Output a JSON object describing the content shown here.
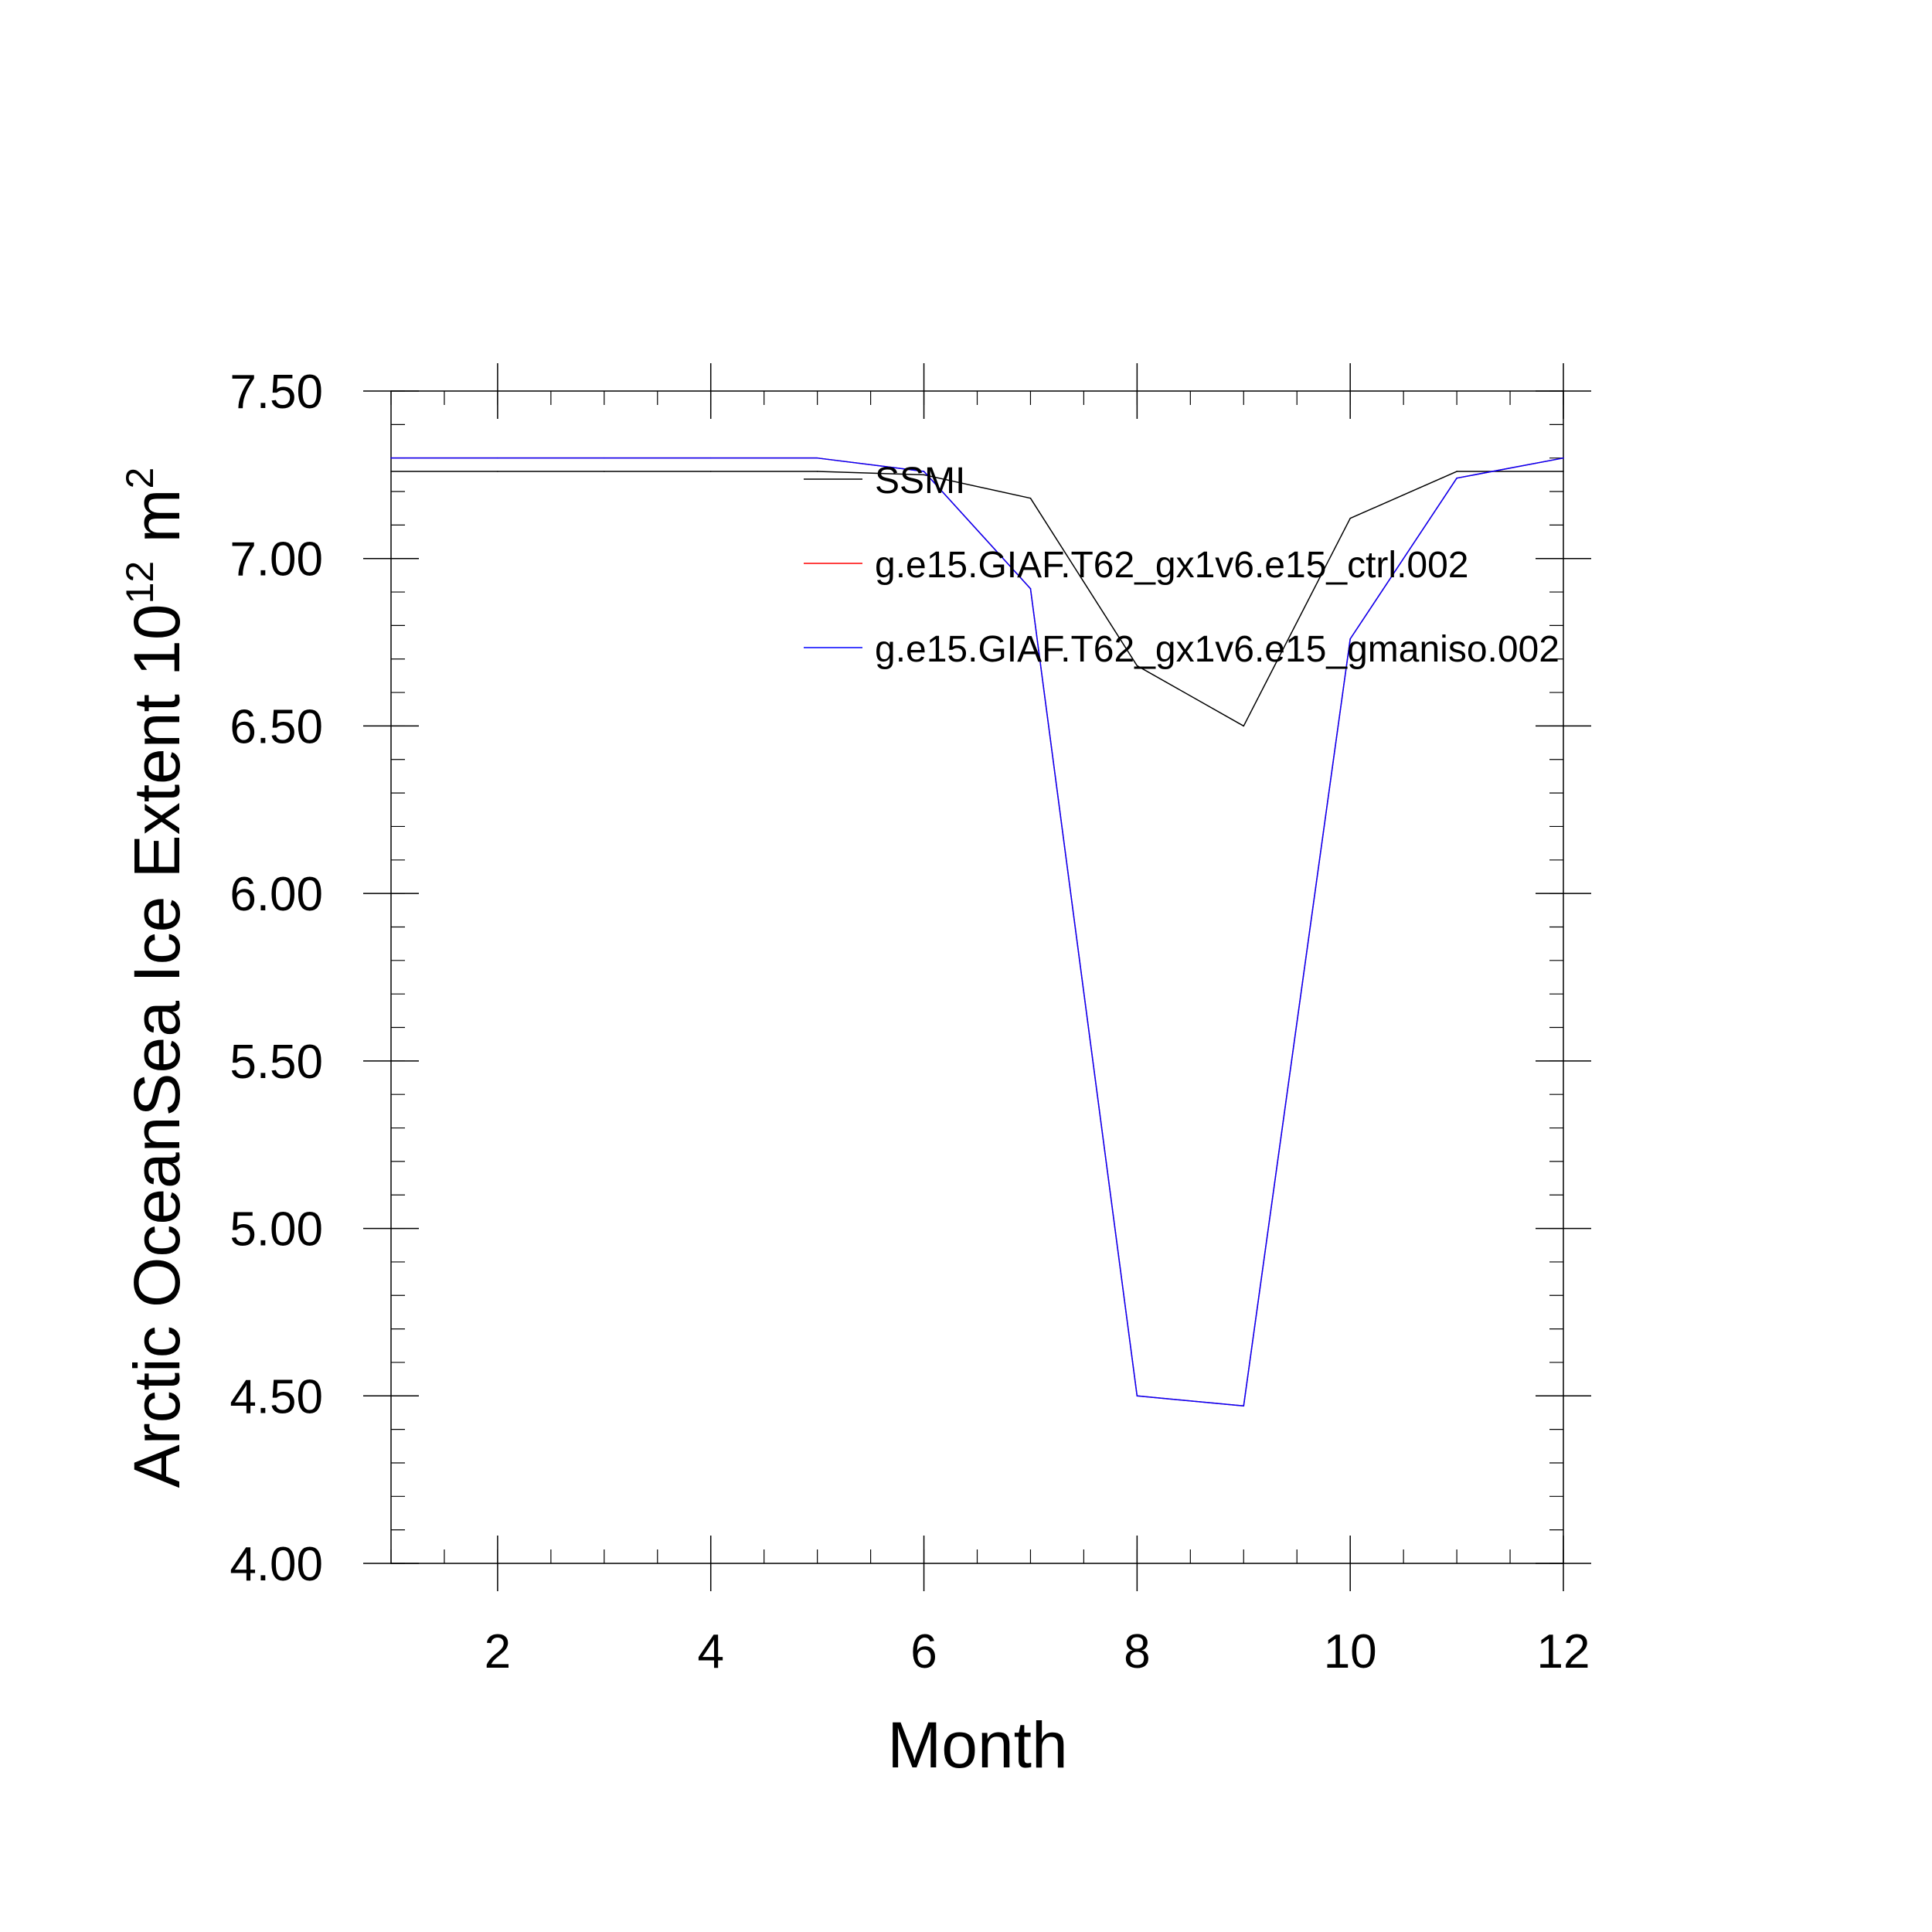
{
  "chart_data": {
    "type": "line",
    "title": "",
    "xlabel": "Month",
    "ylabel": {
      "prefix": "Arctic OceanSea Ice Extent 10",
      "exp1": "12",
      "unit": " m",
      "exp2": "2"
    },
    "xlim": [
      1,
      12
    ],
    "ylim": [
      4.0,
      7.5
    ],
    "x_ticks": [
      2,
      4,
      6,
      8,
      10,
      12
    ],
    "x_tick_labels": [
      "2",
      "4",
      "6",
      "8",
      "10",
      "12"
    ],
    "y_ticks": [
      4.0,
      4.5,
      5.0,
      5.5,
      6.0,
      6.5,
      7.0,
      7.5
    ],
    "y_tick_labels": [
      "4.00",
      "4.50",
      "5.00",
      "5.50",
      "6.00",
      "6.50",
      "7.00",
      "7.50"
    ],
    "x": [
      1,
      2,
      3,
      4,
      5,
      6,
      7,
      8,
      9,
      10,
      11,
      12
    ],
    "series": [
      {
        "name": "SSMI",
        "color": "#000000",
        "values": [
          7.26,
          7.26,
          7.26,
          7.26,
          7.26,
          7.25,
          7.18,
          6.68,
          6.5,
          7.12,
          7.26,
          7.26
        ]
      },
      {
        "name": "g.e15.GIAF.T62_gx1v6.e15_ctrl.002",
        "color": "#ff0000",
        "values": [
          7.3,
          7.3,
          7.3,
          7.3,
          7.3,
          7.26,
          6.91,
          4.5,
          4.47,
          6.76,
          7.24,
          7.3
        ]
      },
      {
        "name": "g.e15.GIAF.T62_gx1v6.e15_gmaniso.002",
        "color": "#0000ff",
        "values": [
          7.3,
          7.3,
          7.3,
          7.3,
          7.3,
          7.26,
          6.91,
          4.5,
          4.47,
          6.76,
          7.24,
          7.3
        ]
      }
    ],
    "legend_position": "top-right inside plot",
    "grid": false
  }
}
